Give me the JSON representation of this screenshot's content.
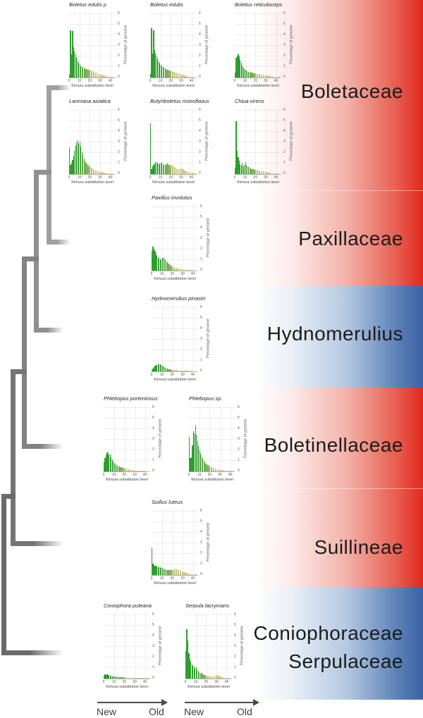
{
  "figure_type": "repeat-landscape phylogeny figure",
  "colors": {
    "band_red": "#e0291e",
    "band_blue": "#3a62a4",
    "bar_green_recent": "#2e9e2e",
    "bar_tan_old": "#dbc487",
    "tree_gray": "#8a8a8a",
    "family_label_text": "#1b1b1b"
  },
  "families": [
    {
      "label": "Boletaceae"
    },
    {
      "label": "Paxillaceae"
    },
    {
      "label": "Hydnomerulius"
    },
    {
      "label": "Boletinellaceae"
    },
    {
      "label": "Suillineae"
    },
    {
      "label": "Coniophoraceae",
      "label2": "Serpulaceae"
    }
  ],
  "time_axis": {
    "new": "New",
    "old": "Old"
  },
  "chart_data": [
    {
      "type": "bar",
      "title": "Boletus edulis p",
      "xlabel": "Kimura substitution level",
      "ylabel": "Percentage of genome",
      "xticks": [
        0,
        10,
        20,
        30,
        40
      ],
      "yticks": [
        0,
        1,
        2,
        3,
        4,
        5,
        6
      ],
      "xlim": [
        0,
        45
      ],
      "ylim": [
        0,
        6.3
      ],
      "x_start": 0,
      "bin_width": 1,
      "values": [
        0.3,
        4.5,
        2.2,
        4.4,
        2.9,
        2.5,
        2.2,
        1.9,
        1.6,
        1.4,
        1.25,
        1.1,
        1.0,
        0.95,
        0.9,
        0.85,
        0.82,
        0.78,
        0.75,
        0.72,
        0.7,
        0.67,
        0.63,
        0.58,
        0.53,
        0.48,
        0.44,
        0.4,
        0.36,
        0.32,
        0.29,
        0.26,
        0.23,
        0.2,
        0.18,
        0.15,
        0.13,
        0.11,
        0.09,
        0.08,
        0.06,
        0.05,
        0.04,
        0.03,
        0.02
      ]
    },
    {
      "type": "bar",
      "title": "Boletus edulis",
      "xlabel": "Kimura substitution level",
      "ylabel": "Percentage of genome",
      "xticks": [
        0,
        10,
        20,
        30,
        40
      ],
      "yticks": [
        0,
        1,
        2,
        3,
        4,
        5,
        6
      ],
      "xlim": [
        0,
        45
      ],
      "ylim": [
        0,
        6.3
      ],
      "x_start": 0,
      "bin_width": 1,
      "values": [
        0.35,
        4.7,
        2.3,
        4.5,
        2.6,
        2.3,
        2.0,
        1.75,
        1.55,
        1.35,
        1.2,
        1.1,
        1.0,
        0.92,
        0.86,
        0.8,
        0.76,
        0.72,
        0.68,
        0.65,
        0.62,
        0.58,
        0.55,
        0.52,
        0.48,
        0.45,
        0.42,
        0.38,
        0.35,
        0.31,
        0.28,
        0.25,
        0.22,
        0.19,
        0.17,
        0.14,
        0.12,
        0.1,
        0.09,
        0.07,
        0.06,
        0.05,
        0.04,
        0.03,
        0.02
      ]
    },
    {
      "type": "bar",
      "title": "Boletus reticuloceps",
      "xlabel": "Kimura substitution level",
      "ylabel": "Percentage of genome",
      "xticks": [
        0,
        10,
        20,
        30,
        40
      ],
      "yticks": [
        0,
        1,
        2,
        3,
        4,
        5,
        6
      ],
      "xlim": [
        0,
        45
      ],
      "ylim": [
        0,
        6.3
      ],
      "x_start": 0,
      "bin_width": 1,
      "values": [
        0.5,
        1.9,
        2.1,
        2.2,
        2.0,
        1.7,
        1.4,
        1.15,
        0.95,
        0.82,
        0.72,
        0.66,
        0.6,
        0.56,
        0.52,
        0.49,
        0.46,
        0.44,
        0.42,
        0.4,
        0.38,
        0.36,
        0.35,
        0.33,
        0.31,
        0.29,
        0.28,
        0.26,
        0.24,
        0.23,
        0.21,
        0.19,
        0.18,
        0.16,
        0.15,
        0.13,
        0.12,
        0.1,
        0.09,
        0.08,
        0.07,
        0.06,
        0.05,
        0.04,
        0.03
      ]
    },
    {
      "type": "bar",
      "title": "Lanmaoa asiatica",
      "xlabel": "Kimura substitution level",
      "ylabel": "Percentage of genome",
      "xticks": [
        0,
        10,
        20,
        30,
        40
      ],
      "yticks": [
        0,
        1,
        2,
        3,
        4,
        5,
        6
      ],
      "xlim": [
        0,
        45
      ],
      "ylim": [
        0,
        6.3
      ],
      "x_start": 0,
      "bin_width": 1,
      "values": [
        2.55,
        0.85,
        1.05,
        1.35,
        1.75,
        2.2,
        2.7,
        3.0,
        3.25,
        2.9,
        3.1,
        2.6,
        2.15,
        1.8,
        1.5,
        1.3,
        1.1,
        0.95,
        0.85,
        0.75,
        0.66,
        0.58,
        0.51,
        0.45,
        0.4,
        0.35,
        0.31,
        0.28,
        0.25,
        0.22,
        0.19,
        0.17,
        0.15,
        0.13,
        0.12,
        0.1,
        0.09,
        0.08,
        0.07,
        0.06,
        0.05,
        0.05,
        0.04,
        0.03,
        0.03
      ]
    },
    {
      "type": "bar",
      "title": "Butyriboletus roseoflavus",
      "xlabel": "Kimura substitution level",
      "ylabel": "Percentage of genome",
      "xticks": [
        0,
        10,
        20,
        30,
        40
      ],
      "yticks": [
        0,
        1,
        2,
        3,
        4,
        5,
        6
      ],
      "xlim": [
        0,
        45
      ],
      "ylim": [
        0,
        6.3
      ],
      "x_start": 0,
      "bin_width": 1,
      "values": [
        4.8,
        0.5,
        0.72,
        0.9,
        1.02,
        1.12,
        1.15,
        1.02,
        0.92,
        1.0,
        1.1,
        1.05,
        0.95,
        0.88,
        0.85,
        0.9,
        1.0,
        0.95,
        0.85,
        0.8,
        0.88,
        0.84,
        0.75,
        0.68,
        0.6,
        0.55,
        0.5,
        0.46,
        0.5,
        0.54,
        0.5,
        0.44,
        0.39,
        0.34,
        0.3,
        0.27,
        0.24,
        0.21,
        0.19,
        0.16,
        0.14,
        0.12,
        0.1,
        0.08,
        0.06
      ]
    },
    {
      "type": "bar",
      "title": "Chiua virens",
      "xlabel": "Kimura substitution level",
      "ylabel": "Percentage of genome",
      "xticks": [
        0,
        10,
        20,
        30,
        40
      ],
      "yticks": [
        0,
        1,
        2,
        3,
        4,
        5,
        6
      ],
      "xlim": [
        0,
        45
      ],
      "ylim": [
        0,
        6.3
      ],
      "x_start": 0,
      "bin_width": 1,
      "values": [
        0.6,
        5.0,
        2.2,
        1.6,
        1.3,
        0.95,
        0.8,
        1.1,
        0.75,
        0.9,
        1.15,
        0.85,
        0.72,
        0.65,
        0.6,
        0.55,
        0.5,
        0.47,
        0.44,
        0.41,
        0.39,
        0.37,
        0.34,
        0.32,
        0.3,
        0.28,
        0.26,
        0.24,
        0.22,
        0.2,
        0.18,
        0.17,
        0.15,
        0.13,
        0.12,
        0.1,
        0.09,
        0.08,
        0.07,
        0.06,
        0.05,
        0.04,
        0.04,
        0.03,
        0.02
      ]
    },
    {
      "type": "bar",
      "title": "Paxillus involutus",
      "xlabel": "Kimura substitution level",
      "ylabel": "Percentage of genome",
      "xticks": [
        0,
        10,
        20,
        30,
        40
      ],
      "yticks": [
        0,
        1,
        2,
        3,
        4,
        5,
        6
      ],
      "xlim": [
        0,
        45
      ],
      "ylim": [
        0,
        6.3
      ],
      "x_start": 0,
      "bin_width": 1,
      "values": [
        1.85,
        2.3,
        2.1,
        1.9,
        1.62,
        1.42,
        1.25,
        1.12,
        1.05,
        1.1,
        1.22,
        1.25,
        1.12,
        1.0,
        0.88,
        0.78,
        0.68,
        0.58,
        0.5,
        0.44,
        0.39,
        0.34,
        0.3,
        0.27,
        0.24,
        0.21,
        0.19,
        0.17,
        0.15,
        0.13,
        0.12,
        0.1,
        0.09,
        0.08,
        0.07,
        0.07,
        0.06,
        0.05,
        0.05,
        0.04,
        0.04,
        0.03,
        0.03,
        0.02,
        0.02
      ]
    },
    {
      "type": "bar",
      "title": "Hydnomerulius pinastri",
      "xlabel": "Kimura substitution level",
      "ylabel": "Percentage of genome",
      "xticks": [
        0,
        10,
        20,
        30,
        40
      ],
      "yticks": [
        0,
        1,
        2,
        3,
        4,
        5,
        6
      ],
      "xlim": [
        0,
        45
      ],
      "ylim": [
        0,
        6.3
      ],
      "x_start": 0,
      "bin_width": 1,
      "values": [
        0.15,
        0.3,
        0.42,
        0.52,
        0.58,
        0.63,
        0.66,
        0.68,
        0.64,
        0.6,
        0.55,
        0.48,
        0.4,
        0.34,
        0.29,
        0.25,
        0.22,
        0.2,
        0.18,
        0.16,
        0.15,
        0.13,
        0.12,
        0.11,
        0.11,
        0.1,
        0.09,
        0.09,
        0.08,
        0.08,
        0.07,
        0.07,
        0.06,
        0.06,
        0.05,
        0.05,
        0.05,
        0.04,
        0.04,
        0.04,
        0.03,
        0.03,
        0.03,
        0.02,
        0.02
      ]
    },
    {
      "type": "bar",
      "title": "Phlebopus portentosus",
      "xlabel": "Kimura substitution level",
      "ylabel": "Percentage of genome",
      "xticks": [
        0,
        10,
        20,
        30,
        40
      ],
      "yticks": [
        0,
        1,
        2,
        3,
        4,
        5,
        6
      ],
      "xlim": [
        0,
        45
      ],
      "ylim": [
        0,
        6.3
      ],
      "x_start": 0,
      "bin_width": 1,
      "values": [
        0.85,
        1.25,
        1.55,
        1.8,
        1.72,
        1.55,
        1.62,
        1.35,
        1.12,
        0.92,
        0.8,
        0.7,
        0.62,
        0.55,
        0.5,
        0.45,
        0.41,
        0.38,
        0.34,
        0.31,
        0.28,
        0.26,
        0.23,
        0.21,
        0.19,
        0.17,
        0.16,
        0.14,
        0.13,
        0.11,
        0.1,
        0.09,
        0.08,
        0.08,
        0.07,
        0.06,
        0.06,
        0.05,
        0.05,
        0.04,
        0.04,
        0.03,
        0.03,
        0.02,
        0.02
      ]
    },
    {
      "type": "bar",
      "title": "Phlebopus sp.",
      "xlabel": "Kimura substitution level",
      "ylabel": "Percentage of genome",
      "xticks": [
        0,
        10,
        20,
        30,
        40
      ],
      "yticks": [
        0,
        1,
        2,
        3,
        4,
        5,
        6
      ],
      "xlim": [
        0,
        45
      ],
      "ylim": [
        0,
        6.3
      ],
      "x_start": 0,
      "bin_width": 1,
      "values": [
        3.3,
        1.25,
        1.35,
        2.5,
        3.8,
        3.6,
        4.35,
        3.5,
        2.9,
        2.4,
        2.0,
        1.7,
        1.42,
        1.2,
        1.02,
        0.88,
        0.76,
        0.66,
        0.58,
        0.51,
        0.45,
        0.4,
        0.35,
        0.31,
        0.28,
        0.25,
        0.22,
        0.2,
        0.18,
        0.16,
        0.14,
        0.13,
        0.11,
        0.1,
        0.09,
        0.08,
        0.07,
        0.07,
        0.06,
        0.05,
        0.05,
        0.04,
        0.04,
        0.03,
        0.03
      ]
    },
    {
      "type": "bar",
      "title": "Suillus luteus",
      "xlabel": "Kimura substitution level",
      "ylabel": "Percentage of genome",
      "xticks": [
        0,
        10,
        20,
        30,
        40
      ],
      "yticks": [
        0,
        1,
        2,
        3,
        4,
        5,
        6
      ],
      "xlim": [
        0,
        45
      ],
      "ylim": [
        0,
        6.3
      ],
      "x_start": 0,
      "bin_width": 1,
      "values": [
        2.6,
        1.1,
        0.95,
        0.88,
        0.84,
        0.8,
        0.77,
        0.74,
        0.71,
        0.68,
        0.64,
        0.6,
        0.56,
        0.52,
        0.49,
        0.47,
        0.46,
        0.45,
        0.46,
        0.48,
        0.5,
        0.53,
        0.55,
        0.56,
        0.55,
        0.52,
        0.49,
        0.45,
        0.4,
        0.36,
        0.31,
        0.27,
        0.24,
        0.21,
        0.18,
        0.16,
        0.13,
        0.11,
        0.1,
        0.08,
        0.07,
        0.06,
        0.05,
        0.04,
        0.03
      ]
    },
    {
      "type": "bar",
      "title": "Coniophora puteana",
      "xlabel": "Kimura substitution level",
      "ylabel": "Percentage of genome",
      "xticks": [
        0,
        10,
        20,
        30,
        40
      ],
      "yticks": [
        0,
        1,
        2,
        3,
        4,
        5,
        6
      ],
      "xlim": [
        0,
        45
      ],
      "ylim": [
        0,
        6.3
      ],
      "x_start": 0,
      "bin_width": 1,
      "values": [
        0.3,
        0.38,
        0.35,
        0.4,
        0.36,
        0.31,
        0.28,
        0.25,
        0.23,
        0.21,
        0.19,
        0.18,
        0.17,
        0.16,
        0.15,
        0.14,
        0.13,
        0.13,
        0.12,
        0.12,
        0.11,
        0.11,
        0.1,
        0.1,
        0.1,
        0.09,
        0.09,
        0.09,
        0.08,
        0.08,
        0.08,
        0.08,
        0.07,
        0.07,
        0.07,
        0.07,
        0.06,
        0.06,
        0.06,
        0.05,
        0.05,
        0.05,
        0.04,
        0.04,
        0.04
      ]
    },
    {
      "type": "bar",
      "title": "Serpula lacrymans",
      "xlabel": "Kimura substitution level",
      "ylabel": "Percentage of genome",
      "xticks": [
        0,
        10,
        20,
        30,
        40
      ],
      "yticks": [
        0,
        1,
        2,
        3,
        4,
        5,
        6
      ],
      "xlim": [
        0,
        45
      ],
      "ylim": [
        0,
        6.3
      ],
      "x_start": 0,
      "bin_width": 1,
      "values": [
        2.6,
        4.7,
        3.6,
        2.4,
        1.9,
        1.6,
        1.35,
        1.2,
        1.15,
        0.95,
        1.05,
        0.85,
        0.72,
        0.62,
        0.56,
        0.5,
        0.45,
        0.4,
        0.36,
        0.32,
        0.29,
        0.27,
        0.25,
        0.23,
        0.22,
        0.21,
        0.22,
        0.25,
        0.29,
        0.33,
        0.31,
        0.28,
        0.24,
        0.2,
        0.17,
        0.15,
        0.12,
        0.1,
        0.09,
        0.07,
        0.06,
        0.05,
        0.04,
        0.03,
        0.03
      ]
    }
  ],
  "tree": {
    "topology": "(((((Boletaceae,Paxillaceae),Hydnomerulius),Boletinellaceae),Suillineae),Coniophoraceae+Serpulaceae)"
  }
}
